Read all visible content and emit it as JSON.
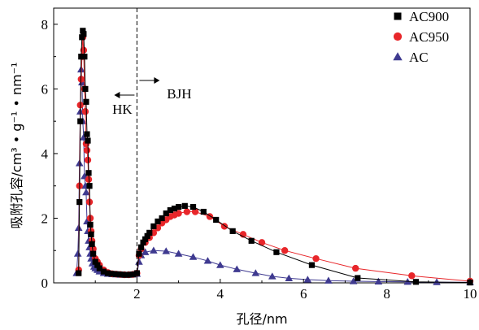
{
  "chart_data": {
    "type": "line",
    "xlabel": "孔径/nm",
    "ylabel": "吸附孔容/cm³ • g⁻¹ • nm⁻¹",
    "xlim": [
      0,
      10
    ],
    "ylim": [
      0,
      8.5
    ],
    "xticks": [
      "2",
      "4",
      "6",
      "8",
      "10"
    ],
    "yticks": [
      "0",
      "2",
      "4",
      "6",
      "8"
    ],
    "grid": false,
    "legend_position": "top-right",
    "annotations": {
      "divider_x": 2,
      "left_label": "HK",
      "right_label": "BJH"
    },
    "series": [
      {
        "name": "AC900",
        "color": "#000000",
        "marker": "square",
        "x": [
          0.6,
          0.62,
          0.64,
          0.66,
          0.68,
          0.7,
          0.72,
          0.74,
          0.76,
          0.78,
          0.8,
          0.82,
          0.84,
          0.86,
          0.88,
          0.9,
          0.92,
          0.95,
          1.0,
          1.05,
          1.1,
          1.2,
          1.3,
          1.4,
          1.5,
          1.6,
          1.7,
          1.8,
          1.9,
          2.0,
          2.05,
          2.1,
          2.15,
          2.2,
          2.25,
          2.3,
          2.4,
          2.5,
          2.6,
          2.7,
          2.8,
          2.9,
          3.0,
          3.15,
          3.35,
          3.6,
          3.9,
          4.3,
          4.75,
          5.35,
          6.2,
          7.3,
          8.7,
          10.0
        ],
        "y": [
          0.3,
          2.5,
          5.0,
          7.0,
          7.6,
          7.8,
          7.7,
          7.0,
          6.0,
          5.6,
          4.6,
          4.4,
          3.4,
          3.0,
          1.8,
          1.5,
          1.2,
          0.9,
          0.65,
          0.55,
          0.45,
          0.35,
          0.3,
          0.28,
          0.27,
          0.26,
          0.25,
          0.25,
          0.26,
          0.3,
          0.9,
          1.1,
          1.25,
          1.35,
          1.45,
          1.55,
          1.75,
          1.9,
          2.0,
          2.15,
          2.25,
          2.3,
          2.35,
          2.38,
          2.35,
          2.2,
          1.95,
          1.6,
          1.3,
          0.95,
          0.55,
          0.15,
          0.03,
          0.01
        ]
      },
      {
        "name": "AC950",
        "color": "#e8262a",
        "marker": "circle",
        "x": [
          0.6,
          0.62,
          0.64,
          0.66,
          0.68,
          0.7,
          0.72,
          0.74,
          0.76,
          0.78,
          0.8,
          0.82,
          0.84,
          0.86,
          0.88,
          0.9,
          0.92,
          0.95,
          1.0,
          1.05,
          1.1,
          1.2,
          1.3,
          1.4,
          1.5,
          1.6,
          1.7,
          1.8,
          1.9,
          2.0,
          2.05,
          2.1,
          2.2,
          2.3,
          2.4,
          2.5,
          2.6,
          2.7,
          2.8,
          2.9,
          3.0,
          3.2,
          3.4,
          3.75,
          4.1,
          4.55,
          5.0,
          5.55,
          6.3,
          7.25,
          8.6,
          10.0
        ],
        "y": [
          0.4,
          3.0,
          5.5,
          6.3,
          7.0,
          7.6,
          7.2,
          6.0,
          5.3,
          4.3,
          4.1,
          3.8,
          3.2,
          2.5,
          2.0,
          1.6,
          1.3,
          1.05,
          0.75,
          0.65,
          0.55,
          0.4,
          0.32,
          0.28,
          0.27,
          0.26,
          0.25,
          0.25,
          0.26,
          0.3,
          0.85,
          1.05,
          1.25,
          1.4,
          1.55,
          1.7,
          1.85,
          1.95,
          2.05,
          2.1,
          2.15,
          2.2,
          2.2,
          2.05,
          1.75,
          1.5,
          1.25,
          1.0,
          0.75,
          0.45,
          0.22,
          0.05
        ]
      },
      {
        "name": "AC",
        "color": "#3f3a90",
        "marker": "triangle",
        "x": [
          0.55,
          0.58,
          0.6,
          0.62,
          0.64,
          0.66,
          0.68,
          0.7,
          0.72,
          0.74,
          0.76,
          0.78,
          0.8,
          0.82,
          0.84,
          0.86,
          0.88,
          0.9,
          0.93,
          0.97,
          1.0,
          1.05,
          1.1,
          1.2,
          1.3,
          1.4,
          1.5,
          1.6,
          1.7,
          1.8,
          1.9,
          2.0,
          2.05,
          2.1,
          2.2,
          2.4,
          2.7,
          3.0,
          3.35,
          3.7,
          4.0,
          4.4,
          4.85,
          5.25,
          5.65,
          6.1,
          6.6,
          7.2,
          7.8,
          8.5,
          9.2,
          10.0
        ],
        "y": [
          0.3,
          0.9,
          1.7,
          3.7,
          5.3,
          6.6,
          6.2,
          5.0,
          4.5,
          3.3,
          3.0,
          2.8,
          1.9,
          1.6,
          1.3,
          1.1,
          0.9,
          0.75,
          0.6,
          0.5,
          0.45,
          0.4,
          0.35,
          0.3,
          0.28,
          0.27,
          0.26,
          0.25,
          0.25,
          0.25,
          0.26,
          0.28,
          0.65,
          0.85,
          0.95,
          1.0,
          0.98,
          0.9,
          0.8,
          0.68,
          0.55,
          0.42,
          0.3,
          0.2,
          0.14,
          0.1,
          0.07,
          0.05,
          0.04,
          0.03,
          0.02,
          0.02
        ]
      }
    ]
  }
}
